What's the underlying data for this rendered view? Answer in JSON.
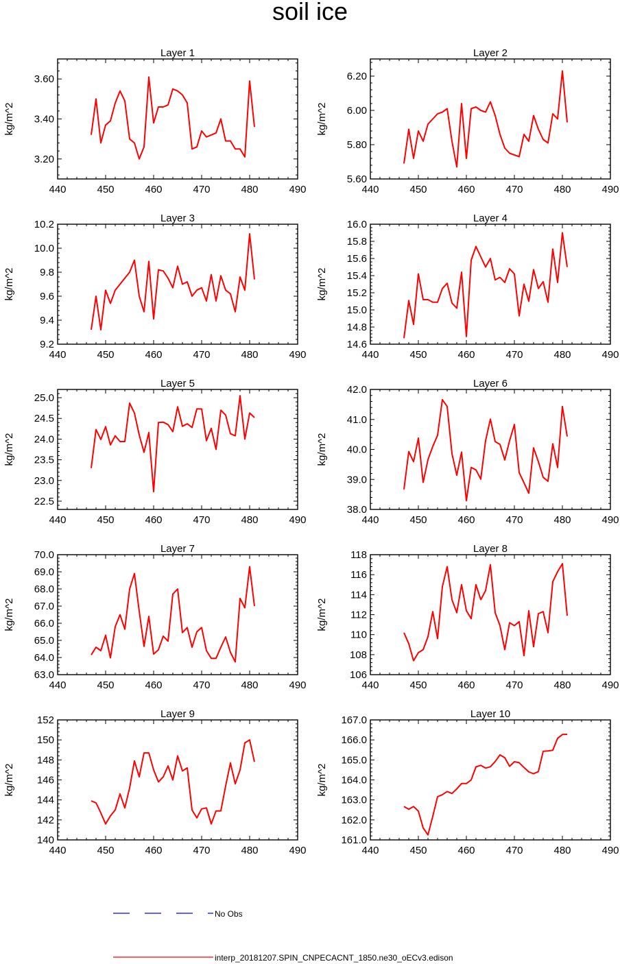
{
  "title": "soil ice",
  "colors": {
    "model": "#ff0000",
    "obs": "#0000ff",
    "axis": "#000000"
  },
  "legend": {
    "obs_label": "No Obs",
    "model_label": "interp_20181207.SPIN_CNPECACNT_1850.ne30_oECv3.edison"
  },
  "chart_data": [
    {
      "type": "line",
      "title": "Layer 1",
      "ylabel": "kg/m^2",
      "xlim": [
        440,
        490
      ],
      "xticks": [
        440,
        450,
        460,
        470,
        480,
        490
      ],
      "ylim": [
        3.1,
        3.7
      ],
      "yticks": [
        "3.20",
        "3.40",
        "3.60"
      ],
      "x": [
        447,
        448,
        449,
        450,
        451,
        452,
        453,
        454,
        455,
        456,
        457,
        458,
        459,
        460,
        461,
        462,
        463,
        464,
        465,
        466,
        467,
        468,
        469,
        470,
        471,
        472,
        473,
        474,
        475,
        476,
        477,
        478,
        479,
        480,
        481
      ],
      "values": [
        3.32,
        3.5,
        3.28,
        3.37,
        3.39,
        3.48,
        3.54,
        3.49,
        3.3,
        3.28,
        3.2,
        3.26,
        3.61,
        3.38,
        3.46,
        3.46,
        3.47,
        3.55,
        3.54,
        3.52,
        3.48,
        3.25,
        3.26,
        3.34,
        3.31,
        3.32,
        3.33,
        3.4,
        3.29,
        3.29,
        3.25,
        3.25,
        3.21,
        3.59,
        3.36
      ]
    },
    {
      "type": "line",
      "title": "Layer 2",
      "ylabel": "kg/m^2",
      "xlim": [
        440,
        490
      ],
      "xticks": [
        440,
        450,
        460,
        470,
        480,
        490
      ],
      "ylim": [
        5.6,
        6.3
      ],
      "yticks": [
        "5.60",
        "5.80",
        "6.00",
        "6.20"
      ],
      "x": [
        447,
        448,
        449,
        450,
        451,
        452,
        453,
        454,
        455,
        456,
        457,
        458,
        459,
        460,
        461,
        462,
        463,
        464,
        465,
        466,
        467,
        468,
        469,
        470,
        471,
        472,
        473,
        474,
        475,
        476,
        477,
        478,
        479,
        480,
        481
      ],
      "values": [
        5.69,
        5.89,
        5.72,
        5.88,
        5.82,
        5.92,
        5.95,
        5.98,
        5.99,
        6.01,
        5.82,
        5.67,
        6.04,
        5.72,
        6.01,
        6.02,
        6.0,
        5.99,
        6.05,
        5.97,
        5.86,
        5.78,
        5.75,
        5.74,
        5.73,
        5.86,
        5.82,
        5.97,
        5.89,
        5.83,
        5.81,
        5.98,
        5.95,
        6.23,
        5.93
      ]
    },
    {
      "type": "line",
      "title": "Layer 3",
      "ylabel": "kg/m^2",
      "xlim": [
        440,
        490
      ],
      "xticks": [
        440,
        450,
        460,
        470,
        480,
        490
      ],
      "ylim": [
        9.2,
        10.2
      ],
      "yticks": [
        "9.2",
        "9.4",
        "9.6",
        "9.8",
        "10.0",
        "10.2"
      ],
      "x": [
        447,
        448,
        449,
        450,
        451,
        452,
        453,
        454,
        455,
        456,
        457,
        458,
        459,
        460,
        461,
        462,
        463,
        464,
        465,
        466,
        467,
        468,
        469,
        470,
        471,
        472,
        473,
        474,
        475,
        476,
        477,
        478,
        479,
        480,
        481
      ],
      "values": [
        9.32,
        9.6,
        9.32,
        9.65,
        9.54,
        9.65,
        9.7,
        9.75,
        9.8,
        9.9,
        9.6,
        9.47,
        9.89,
        9.41,
        9.82,
        9.81,
        9.75,
        9.67,
        9.85,
        9.7,
        9.72,
        9.6,
        9.65,
        9.67,
        9.56,
        9.78,
        9.56,
        9.77,
        9.65,
        9.62,
        9.47,
        9.76,
        9.65,
        10.12,
        9.74
      ]
    },
    {
      "type": "line",
      "title": "Layer 4",
      "ylabel": "kg/m^2",
      "xlim": [
        440,
        490
      ],
      "xticks": [
        440,
        450,
        460,
        470,
        480,
        490
      ],
      "ylim": [
        14.6,
        16.0
      ],
      "yticks": [
        "14.6",
        "14.8",
        "15.0",
        "15.2",
        "15.4",
        "15.6",
        "15.8",
        "16.0"
      ],
      "x": [
        447,
        448,
        449,
        450,
        451,
        452,
        453,
        454,
        455,
        456,
        457,
        458,
        459,
        460,
        461,
        462,
        463,
        464,
        465,
        466,
        467,
        468,
        469,
        470,
        471,
        472,
        473,
        474,
        475,
        476,
        477,
        478,
        479,
        480,
        481
      ],
      "values": [
        14.67,
        15.11,
        14.83,
        15.42,
        15.12,
        15.12,
        15.09,
        15.09,
        15.25,
        15.31,
        15.08,
        15.02,
        15.44,
        14.69,
        15.58,
        15.74,
        15.62,
        15.5,
        15.6,
        15.35,
        15.38,
        15.32,
        15.48,
        15.42,
        14.93,
        15.3,
        15.1,
        15.47,
        15.25,
        15.33,
        15.09,
        15.71,
        15.32,
        15.9,
        15.5
      ]
    },
    {
      "type": "line",
      "title": "Layer 5",
      "ylabel": "kg/m^2",
      "xlim": [
        440,
        490
      ],
      "xticks": [
        440,
        450,
        460,
        470,
        480,
        490
      ],
      "ylim": [
        22.3,
        25.2
      ],
      "yticks": [
        "22.5",
        "23.0",
        "23.5",
        "24.0",
        "24.5",
        "25.0"
      ],
      "x": [
        447,
        448,
        449,
        450,
        451,
        452,
        453,
        454,
        455,
        456,
        457,
        458,
        459,
        460,
        461,
        462,
        463,
        464,
        465,
        466,
        467,
        468,
        469,
        470,
        471,
        472,
        473,
        474,
        475,
        476,
        477,
        478,
        479,
        480,
        481
      ],
      "values": [
        23.3,
        24.23,
        23.99,
        24.3,
        23.86,
        24.08,
        23.94,
        23.94,
        24.87,
        24.63,
        24.1,
        23.68,
        24.16,
        22.73,
        24.4,
        24.41,
        24.35,
        24.18,
        24.78,
        24.31,
        24.37,
        24.28,
        24.73,
        24.73,
        23.96,
        24.26,
        23.75,
        24.7,
        24.58,
        24.13,
        24.08,
        25.05,
        24.0,
        24.63,
        24.52
      ]
    },
    {
      "type": "line",
      "title": "Layer 6",
      "ylabel": "kg/m^2",
      "xlim": [
        440,
        490
      ],
      "xticks": [
        440,
        450,
        460,
        470,
        480,
        490
      ],
      "ylim": [
        38.0,
        42.0
      ],
      "yticks": [
        "38.0",
        "39.0",
        "40.0",
        "41.0",
        "42.0"
      ],
      "x": [
        447,
        448,
        449,
        450,
        451,
        452,
        453,
        454,
        455,
        456,
        457,
        458,
        459,
        460,
        461,
        462,
        463,
        464,
        465,
        466,
        467,
        468,
        469,
        470,
        471,
        472,
        473,
        474,
        475,
        476,
        477,
        478,
        479,
        480,
        481
      ],
      "values": [
        38.67,
        39.93,
        39.59,
        40.38,
        38.9,
        39.66,
        40.1,
        40.47,
        41.66,
        41.43,
        39.86,
        39.14,
        39.91,
        38.29,
        39.4,
        39.32,
        39.01,
        40.29,
        41.01,
        40.26,
        40.17,
        39.65,
        40.29,
        40.83,
        39.23,
        38.89,
        38.54,
        40.05,
        39.59,
        39.07,
        38.94,
        40.19,
        39.4,
        41.43,
        40.43
      ]
    },
    {
      "type": "line",
      "title": "Layer 7",
      "ylabel": "kg/m^2",
      "xlim": [
        440,
        490
      ],
      "xticks": [
        440,
        450,
        460,
        470,
        480,
        490
      ],
      "ylim": [
        63.0,
        70.0
      ],
      "yticks": [
        "63.0",
        "64.0",
        "65.0",
        "66.0",
        "67.0",
        "68.0",
        "69.0",
        "70.0"
      ],
      "x": [
        447,
        448,
        449,
        450,
        451,
        452,
        453,
        454,
        455,
        456,
        457,
        458,
        459,
        460,
        461,
        462,
        463,
        464,
        465,
        466,
        467,
        468,
        469,
        470,
        471,
        472,
        473,
        474,
        475,
        476,
        477,
        478,
        479,
        480,
        481
      ],
      "values": [
        64.15,
        64.6,
        64.4,
        65.3,
        63.98,
        65.8,
        66.5,
        65.65,
        68.0,
        68.9,
        66.7,
        64.65,
        66.4,
        64.2,
        64.45,
        65.25,
        64.95,
        67.7,
        68.0,
        65.45,
        65.75,
        64.6,
        65.5,
        65.75,
        64.4,
        63.95,
        63.95,
        64.6,
        65.2,
        64.3,
        63.75,
        67.45,
        66.9,
        69.3,
        67.0
      ]
    },
    {
      "type": "line",
      "title": "Layer 8",
      "ylabel": "kg/m^2",
      "xlim": [
        440,
        490
      ],
      "xticks": [
        440,
        450,
        460,
        470,
        480,
        490
      ],
      "ylim": [
        106,
        118
      ],
      "yticks": [
        "106",
        "108",
        "110",
        "112",
        "114",
        "116",
        "118"
      ],
      "x": [
        447,
        448,
        449,
        450,
        451,
        452,
        453,
        454,
        455,
        456,
        457,
        458,
        459,
        460,
        461,
        462,
        463,
        464,
        465,
        466,
        467,
        468,
        469,
        470,
        471,
        472,
        473,
        474,
        475,
        476,
        477,
        478,
        479,
        480,
        481
      ],
      "values": [
        110.2,
        109.1,
        107.4,
        108.2,
        108.5,
        109.8,
        112.3,
        109.6,
        114.8,
        116.8,
        113.5,
        112.2,
        115.0,
        112.4,
        111.6,
        115.0,
        113.5,
        114.4,
        117.0,
        112.2,
        110.9,
        108.5,
        111.2,
        110.9,
        111.3,
        107.9,
        112.4,
        108.8,
        112.1,
        112.3,
        110.2,
        115.3,
        116.3,
        117.1,
        111.9
      ]
    },
    {
      "type": "line",
      "title": "Layer 9",
      "ylabel": "kg/m^2",
      "xlim": [
        440,
        490
      ],
      "xticks": [
        440,
        450,
        460,
        470,
        480,
        490
      ],
      "ylim": [
        140,
        152
      ],
      "yticks": [
        "140",
        "142",
        "144",
        "146",
        "148",
        "150",
        "152"
      ],
      "x": [
        447,
        448,
        449,
        450,
        451,
        452,
        453,
        454,
        455,
        456,
        457,
        458,
        459,
        460,
        461,
        462,
        463,
        464,
        465,
        466,
        467,
        468,
        469,
        470,
        471,
        472,
        473,
        474,
        475,
        476,
        477,
        478,
        479,
        480,
        481
      ],
      "values": [
        143.9,
        143.7,
        142.7,
        141.6,
        142.4,
        143.0,
        144.6,
        143.2,
        145.2,
        147.9,
        146.3,
        148.7,
        148.7,
        147.0,
        145.8,
        146.3,
        147.4,
        146.0,
        148.4,
        146.9,
        147.2,
        143.0,
        142.2,
        143.1,
        143.2,
        141.6,
        142.9,
        142.9,
        145.4,
        147.7,
        145.6,
        147.0,
        149.7,
        150.0,
        147.8
      ]
    },
    {
      "type": "line",
      "title": "Layer 10",
      "ylabel": "kg/m^2",
      "xlim": [
        440,
        490
      ],
      "xticks": [
        440,
        450,
        460,
        470,
        480,
        490
      ],
      "ylim": [
        161.0,
        167.0
      ],
      "yticks": [
        "161.0",
        "162.0",
        "163.0",
        "164.0",
        "165.0",
        "166.0",
        "167.0"
      ],
      "x": [
        447,
        448,
        449,
        450,
        451,
        452,
        453,
        454,
        455,
        456,
        457,
        458,
        459,
        460,
        461,
        462,
        463,
        464,
        465,
        466,
        467,
        468,
        469,
        470,
        471,
        472,
        473,
        474,
        475,
        476,
        477,
        478,
        479,
        480,
        481
      ],
      "values": [
        162.67,
        162.53,
        162.67,
        162.44,
        161.6,
        161.25,
        162.18,
        163.16,
        163.26,
        163.42,
        163.32,
        163.55,
        163.82,
        163.82,
        164.0,
        164.65,
        164.73,
        164.59,
        164.66,
        164.92,
        165.25,
        165.11,
        164.68,
        164.91,
        164.86,
        164.62,
        164.4,
        164.31,
        164.42,
        165.43,
        165.45,
        165.48,
        166.08,
        166.27,
        166.28
      ]
    }
  ]
}
